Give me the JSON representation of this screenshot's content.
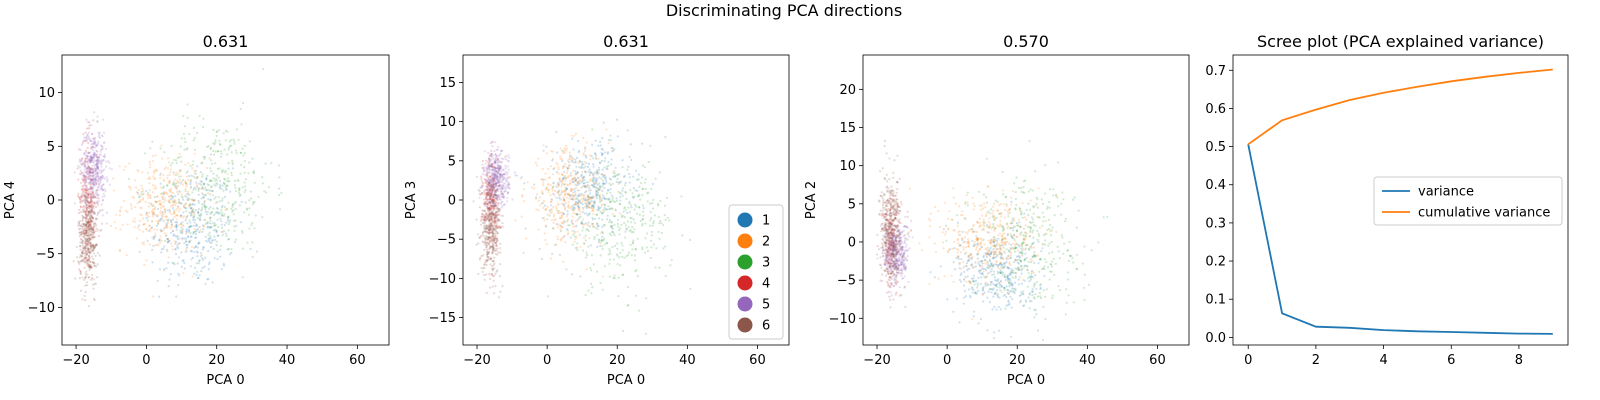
{
  "suptitle": "Discriminating PCA directions",
  "class_colors": {
    "1": "#1f77b4",
    "2": "#ff7f0e",
    "3": "#2ca02c",
    "4": "#d62728",
    "5": "#9467bd",
    "6": "#8c564b"
  },
  "chart_data": [
    {
      "type": "scatter",
      "title": "0.631",
      "xlabel": "PCA 0",
      "ylabel": "PCA 4",
      "xlim": [
        -24,
        69
      ],
      "ylim": [
        -13.5,
        13.5
      ],
      "xticks": [
        -20,
        0,
        20,
        40,
        60
      ],
      "yticks": [
        -10,
        -5,
        0,
        5,
        10
      ],
      "clusters": [
        {
          "class": "1",
          "cx": 13,
          "cy": -2.5,
          "sx": 6,
          "sy": 2.8,
          "n": 380
        },
        {
          "class": "2",
          "cx": 5,
          "cy": -0.5,
          "sx": 6,
          "sy": 2.2,
          "n": 380
        },
        {
          "class": "3",
          "cx": 20,
          "cy": 1.2,
          "sx": 8,
          "sy": 3.2,
          "n": 380
        },
        {
          "class": "4",
          "cx": -16.5,
          "cy": 0.2,
          "sx": 1.3,
          "sy": 2.8,
          "n": 260
        },
        {
          "class": "5",
          "cx": -15,
          "cy": 3.0,
          "sx": 1.8,
          "sy": 1.8,
          "n": 420
        },
        {
          "class": "6",
          "cx": -16.5,
          "cy": -3.5,
          "sx": 1.4,
          "sy": 2.2,
          "n": 400
        }
      ]
    },
    {
      "type": "scatter",
      "title": "0.631",
      "xlabel": "PCA 0",
      "ylabel": "PCA 3",
      "xlim": [
        -24,
        69
      ],
      "ylim": [
        -18.5,
        18.5
      ],
      "xticks": [
        -20,
        0,
        20,
        40,
        60
      ],
      "yticks": [
        -15,
        -10,
        -5,
        0,
        5,
        10,
        15
      ],
      "legend": {
        "placement": "lower-right",
        "entries": [
          "1",
          "2",
          "3",
          "4",
          "5",
          "6"
        ]
      },
      "clusters": [
        {
          "class": "1",
          "cx": 12,
          "cy": 1.5,
          "sx": 6,
          "sy": 3,
          "n": 380
        },
        {
          "class": "2",
          "cx": 6,
          "cy": 0.5,
          "sx": 6,
          "sy": 3,
          "n": 380
        },
        {
          "class": "3",
          "cx": 20,
          "cy": -3,
          "sx": 8,
          "sy": 4,
          "n": 380
        },
        {
          "class": "4",
          "cx": -16,
          "cy": 0,
          "sx": 1.3,
          "sy": 3,
          "n": 260
        },
        {
          "class": "5",
          "cx": -14.5,
          "cy": 2.5,
          "sx": 1.8,
          "sy": 1.8,
          "n": 420
        },
        {
          "class": "6",
          "cx": -16,
          "cy": -3.5,
          "sx": 1.4,
          "sy": 3,
          "n": 400
        }
      ]
    },
    {
      "type": "scatter",
      "title": "0.570",
      "xlabel": "PCA 0",
      "ylabel": "PCA 2",
      "xlim": [
        -24,
        69
      ],
      "ylim": [
        -13.5,
        24.5
      ],
      "xticks": [
        -20,
        0,
        20,
        40,
        60
      ],
      "yticks": [
        -10,
        -5,
        0,
        5,
        10,
        15,
        20
      ],
      "clusters": [
        {
          "class": "1",
          "cx": 14,
          "cy": -4,
          "sx": 6,
          "sy": 2.8,
          "n": 380
        },
        {
          "class": "2",
          "cx": 12,
          "cy": 0.5,
          "sx": 7,
          "sy": 3,
          "n": 380
        },
        {
          "class": "3",
          "cx": 22,
          "cy": 0,
          "sx": 8,
          "sy": 4.5,
          "n": 380
        },
        {
          "class": "4",
          "cx": -16,
          "cy": 0,
          "sx": 1.3,
          "sy": 3,
          "n": 200
        },
        {
          "class": "5",
          "cx": -14.5,
          "cy": -1.5,
          "sx": 1.8,
          "sy": 2,
          "n": 400
        },
        {
          "class": "6",
          "cx": -16,
          "cy": 1.5,
          "sx": 1.5,
          "sy": 3.5,
          "n": 420
        }
      ]
    },
    {
      "type": "line",
      "title": "Scree plot (PCA explained variance)",
      "xlabel": "",
      "ylabel": "",
      "xlim": [
        -0.45,
        9.45
      ],
      "ylim": [
        -0.02,
        0.74
      ],
      "xticks": [
        0,
        2,
        4,
        6,
        8
      ],
      "yticks": [
        0.0,
        0.1,
        0.2,
        0.3,
        0.4,
        0.5,
        0.6,
        0.7
      ],
      "x": [
        0,
        1,
        2,
        3,
        4,
        5,
        6,
        7,
        8,
        9
      ],
      "series": [
        {
          "name": "variance",
          "class": "1",
          "values": [
            0.506,
            0.063,
            0.028,
            0.025,
            0.019,
            0.016,
            0.014,
            0.012,
            0.01,
            0.009
          ]
        },
        {
          "name": "cumulative variance",
          "class": "2",
          "values": [
            0.506,
            0.569,
            0.597,
            0.622,
            0.641,
            0.657,
            0.671,
            0.683,
            0.693,
            0.702
          ]
        }
      ],
      "legend": {
        "placement": "center-right"
      }
    }
  ]
}
